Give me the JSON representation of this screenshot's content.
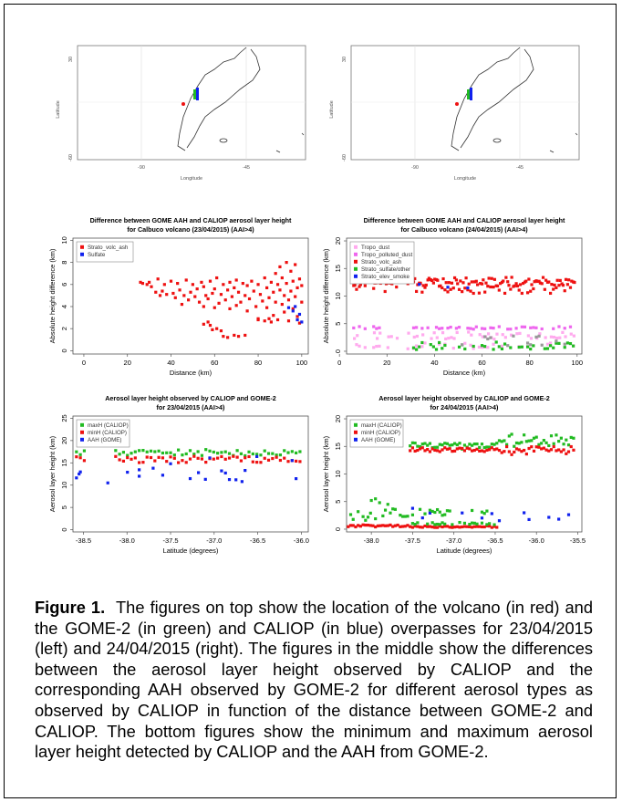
{
  "colors": {
    "red": "#ee1111",
    "blue": "#1122ee",
    "green": "#22bb22",
    "magenta": "#ee66ee",
    "pink": "#ffaaee",
    "grey": "#999999",
    "gray_text": "#555555"
  },
  "maps": [
    {
      "xlabel": "Longitude",
      "ylabel": "Latitude",
      "xticks": [
        "-90",
        "-45"
      ],
      "yticks": [
        "30",
        "-60"
      ]
    },
    {
      "xlabel": "Longitude",
      "ylabel": "Latitude",
      "xticks": [
        "-90",
        "-45"
      ],
      "yticks": [
        "30",
        "-60"
      ]
    }
  ],
  "chart_data": [
    {
      "type": "scatter",
      "title": "Difference between GOME AAH and CALIOP aerosol layer height",
      "subtitle": "for Calbuco volcano (23/04/2015) (AAI>4)",
      "xlabel": "Distance (km)",
      "ylabel": "Absolute height difference (km)",
      "xlim": [
        -5,
        103
      ],
      "ylim": [
        -0.3,
        10.2
      ],
      "xticks": [
        0,
        20,
        40,
        60,
        80,
        100
      ],
      "yticks": [
        0,
        2,
        4,
        6,
        8,
        10
      ],
      "legend_position": "top-left",
      "series": [
        {
          "name": "Strato_volc_ash",
          "color": "red",
          "points": [
            [
              26,
              6.2
            ],
            [
              27,
              6.1
            ],
            [
              29,
              6.0
            ],
            [
              30,
              6.2
            ],
            [
              31,
              5.8
            ],
            [
              33,
              5.3
            ],
            [
              34,
              6.5
            ],
            [
              35,
              5.0
            ],
            [
              36,
              5.4
            ],
            [
              37,
              6.0
            ],
            [
              38,
              5.1
            ],
            [
              40,
              6.3
            ],
            [
              41,
              5.2
            ],
            [
              42,
              4.8
            ],
            [
              43,
              6.1
            ],
            [
              44,
              5.5
            ],
            [
              45,
              4.2
            ],
            [
              46,
              5.0
            ],
            [
              47,
              6.4
            ],
            [
              48,
              4.6
            ],
            [
              49,
              5.3
            ],
            [
              50,
              6.0
            ],
            [
              51,
              4.9
            ],
            [
              52,
              5.6
            ],
            [
              53,
              4.4
            ],
            [
              54,
              6.2
            ],
            [
              55,
              4.0
            ],
            [
              55,
              5.8
            ],
            [
              56,
              5.0
            ],
            [
              57,
              4.7
            ],
            [
              58,
              6.3
            ],
            [
              59,
              5.2
            ],
            [
              60,
              3.9
            ],
            [
              60,
              5.6
            ],
            [
              61,
              6.6
            ],
            [
              62,
              4.3
            ],
            [
              63,
              5.1
            ],
            [
              64,
              6.0
            ],
            [
              65,
              4.6
            ],
            [
              66,
              5.5
            ],
            [
              67,
              3.8
            ],
            [
              67,
              6.2
            ],
            [
              68,
              4.9
            ],
            [
              69,
              5.7
            ],
            [
              70,
              4.1
            ],
            [
              70,
              6.4
            ],
            [
              71,
              5.3
            ],
            [
              72,
              4.4
            ],
            [
              73,
              6.1
            ],
            [
              74,
              5.0
            ],
            [
              75,
              3.6
            ],
            [
              75,
              5.9
            ],
            [
              76,
              4.7
            ],
            [
              77,
              6.3
            ],
            [
              78,
              5.4
            ],
            [
              79,
              4.0
            ],
            [
              80,
              6.0
            ],
            [
              80,
              2.9
            ],
            [
              81,
              5.1
            ],
            [
              82,
              4.5
            ],
            [
              83,
              6.6
            ],
            [
              84,
              3.9
            ],
            [
              84,
              5.7
            ],
            [
              85,
              4.8
            ],
            [
              86,
              6.2
            ],
            [
              87,
              5.3
            ],
            [
              87,
              3.2
            ],
            [
              88,
              7.0
            ],
            [
              88,
              4.4
            ],
            [
              89,
              6.0
            ],
            [
              89,
              2.8
            ],
            [
              90,
              5.5
            ],
            [
              90,
              7.6
            ],
            [
              91,
              4.2
            ],
            [
              91,
              6.6
            ],
            [
              92,
              5.0
            ],
            [
              92,
              3.5
            ],
            [
              93,
              8.0
            ],
            [
              93,
              6.1
            ],
            [
              94,
              4.6
            ],
            [
              94,
              2.7
            ],
            [
              95,
              7.2
            ],
            [
              95,
              5.4
            ],
            [
              96,
              3.8
            ],
            [
              96,
              6.3
            ],
            [
              97,
              4.9
            ],
            [
              97,
              7.8
            ],
            [
              98,
              5.7
            ],
            [
              98,
              3.1
            ],
            [
              99,
              6.5
            ],
            [
              99,
              2.5
            ],
            [
              100,
              4.4
            ],
            [
              100,
              5.9
            ],
            [
              64,
              1.3
            ],
            [
              66,
              1.2
            ],
            [
              69,
              1.4
            ],
            [
              71,
              1.3
            ],
            [
              74,
              1.4
            ],
            [
              55,
              2.4
            ],
            [
              57,
              2.6
            ],
            [
              58,
              2.3
            ],
            [
              59,
              1.9
            ],
            [
              61,
              2.0
            ],
            [
              63,
              1.8
            ],
            [
              80,
              2.8
            ],
            [
              83,
              2.7
            ],
            [
              85,
              2.9
            ],
            [
              86,
              2.6
            ]
          ]
        },
        {
          "name": "Sulfate",
          "color": "blue",
          "points": [
            [
              94,
              3.9
            ],
            [
              96,
              3.6
            ],
            [
              97,
              4.0
            ],
            [
              98,
              2.8
            ],
            [
              99,
              3.3
            ],
            [
              100,
              2.6
            ]
          ]
        }
      ]
    },
    {
      "type": "scatter",
      "title": "Difference between GOME AAH and CALIOP aerosol layer height",
      "subtitle": "for Calbuco volcano (24/04/2015) (AAI>4)",
      "xlabel": "Distance (km)",
      "ylabel": "Absolute height difference (km)",
      "xlim": [
        3,
        102
      ],
      "ylim": [
        -0.5,
        20.5
      ],
      "xticks": [
        0,
        20,
        40,
        60,
        80,
        100
      ],
      "yticks": [
        0,
        5,
        10,
        15,
        20
      ],
      "legend_position": "top-left",
      "series": [
        {
          "name": "Tropo_dust",
          "color": "pink"
        },
        {
          "name": "Tropo_polluted_dust",
          "color": "magenta"
        },
        {
          "name": "Strato_volc_ash",
          "color": "red"
        },
        {
          "name": "Strato_sulfate/other",
          "color": "green"
        },
        {
          "name": "Strato_elev_smoke",
          "color": "blue"
        }
      ]
    },
    {
      "type": "scatter",
      "title": "Aerosol layer height observed by CALIOP and GOME-2",
      "subtitle": "for 23/04/2015 (AAI>4)",
      "xlabel": "Latitude (degrees)",
      "ylabel": "Aerosol layer height (km)",
      "xlim": [
        -38.62,
        -35.92
      ],
      "ylim": [
        -0.5,
        25.5
      ],
      "xticks": [
        -38.5,
        -38.0,
        -37.5,
        -37.0,
        -36.5,
        -36.0
      ],
      "xticklabels": [
        "-38.5",
        "-38.0",
        "-37.5",
        "-37.0",
        "-36.5",
        "-36.0"
      ],
      "yticks": [
        0,
        5,
        10,
        15,
        20,
        25
      ],
      "legend_position": "top-left",
      "series": [
        {
          "name": "maxH (CALIOP)",
          "color": "green"
        },
        {
          "name": "minH (CALIOP)",
          "color": "red"
        },
        {
          "name": "AAH (GOME)",
          "color": "blue"
        }
      ]
    },
    {
      "type": "scatter",
      "title": "Aerosol layer height observed by CALIOP and GOME-2",
      "subtitle": "for 24/04/2015 (AAI>4)",
      "xlabel": "Latitude (degrees)",
      "ylabel": "Aerosol layer height (km)",
      "xlim": [
        -38.3,
        -35.45
      ],
      "ylim": [
        -0.5,
        20.5
      ],
      "xticks": [
        -38.0,
        -37.5,
        -37.0,
        -36.5,
        -36.0,
        -35.5
      ],
      "xticklabels": [
        "-38.0",
        "-37.5",
        "-37.0",
        "-36.5",
        "-36.0",
        "-35.5"
      ],
      "yticks": [
        0,
        5,
        10,
        15,
        20
      ],
      "legend_position": "top-left",
      "series": [
        {
          "name": "maxH (CALIOP)",
          "color": "green"
        },
        {
          "name": "minH (CALIOP)",
          "color": "red"
        },
        {
          "name": "AAH (GOME)",
          "color": "blue"
        }
      ]
    }
  ],
  "caption": {
    "label": "Figure 1.",
    "text": "The figures on top show the location of the volcano (in red) and the GOME-2 (in green) and CALIOP (in blue) overpasses for 23/04/2015 (left) and 24/04/2015 (right). The figures in the middle show the differences between the aerosol layer height observed by CALIOP and the corresponding AAH observed by GOME-2 for different aerosol types as observed by CALIOP in function of the distance between GOME-2 and CALIOP. The bottom figures show the minimum and maximum aerosol layer height detected by CALIOP and the AAH from GOME-2."
  }
}
